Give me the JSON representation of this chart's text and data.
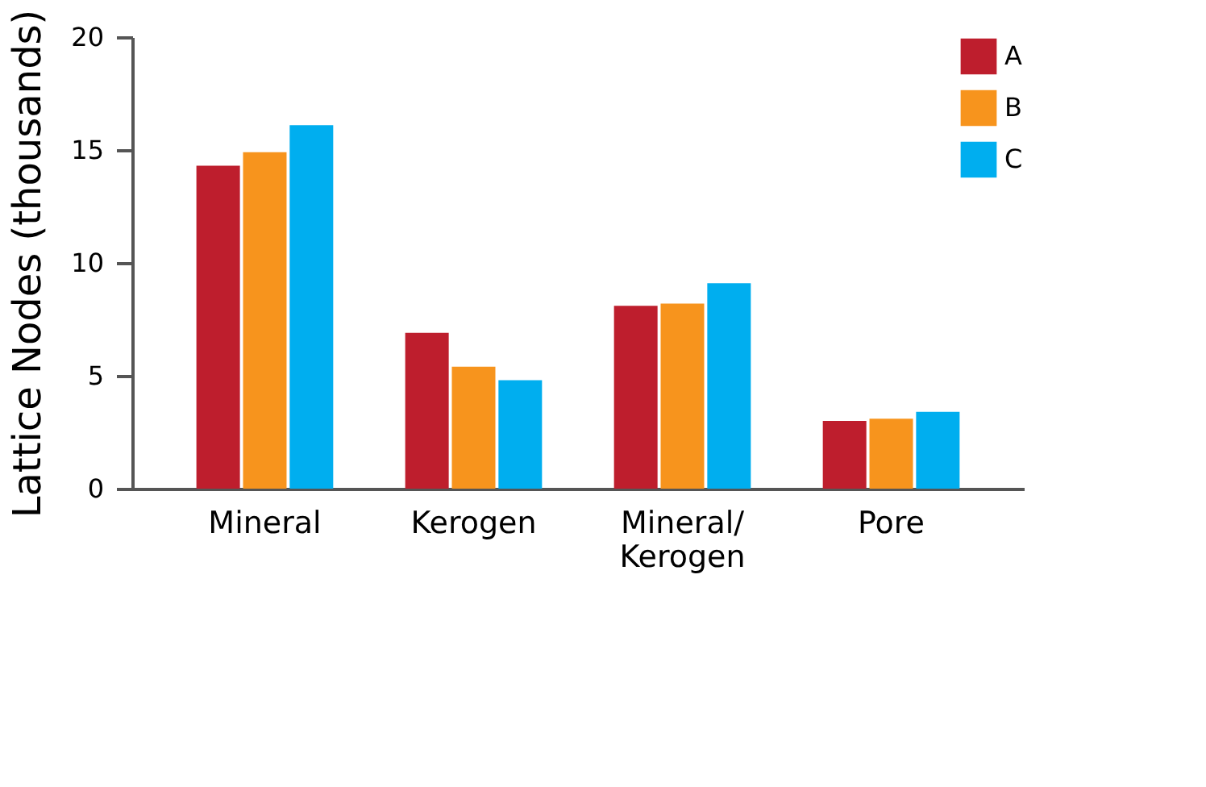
{
  "chart_data": {
    "type": "bar",
    "ylabel": "Lattice Nodes  (thousands)",
    "categories": [
      "Mineral",
      "Kerogen",
      "Mineral/ Kerogen",
      "Pore"
    ],
    "series": [
      {
        "name": "A",
        "color": "#be1e2d",
        "values": [
          14.3,
          6.9,
          8.1,
          3.0
        ]
      },
      {
        "name": "B",
        "color": "#f7941d",
        "values": [
          14.9,
          5.4,
          8.2,
          3.1
        ]
      },
      {
        "name": "C",
        "color": "#00aeef",
        "values": [
          16.1,
          4.8,
          9.1,
          3.4
        ]
      }
    ],
    "ylim": [
      0,
      20
    ],
    "yticks": [
      0,
      5,
      10,
      15,
      20
    ],
    "grid": false,
    "legend": "top right"
  }
}
